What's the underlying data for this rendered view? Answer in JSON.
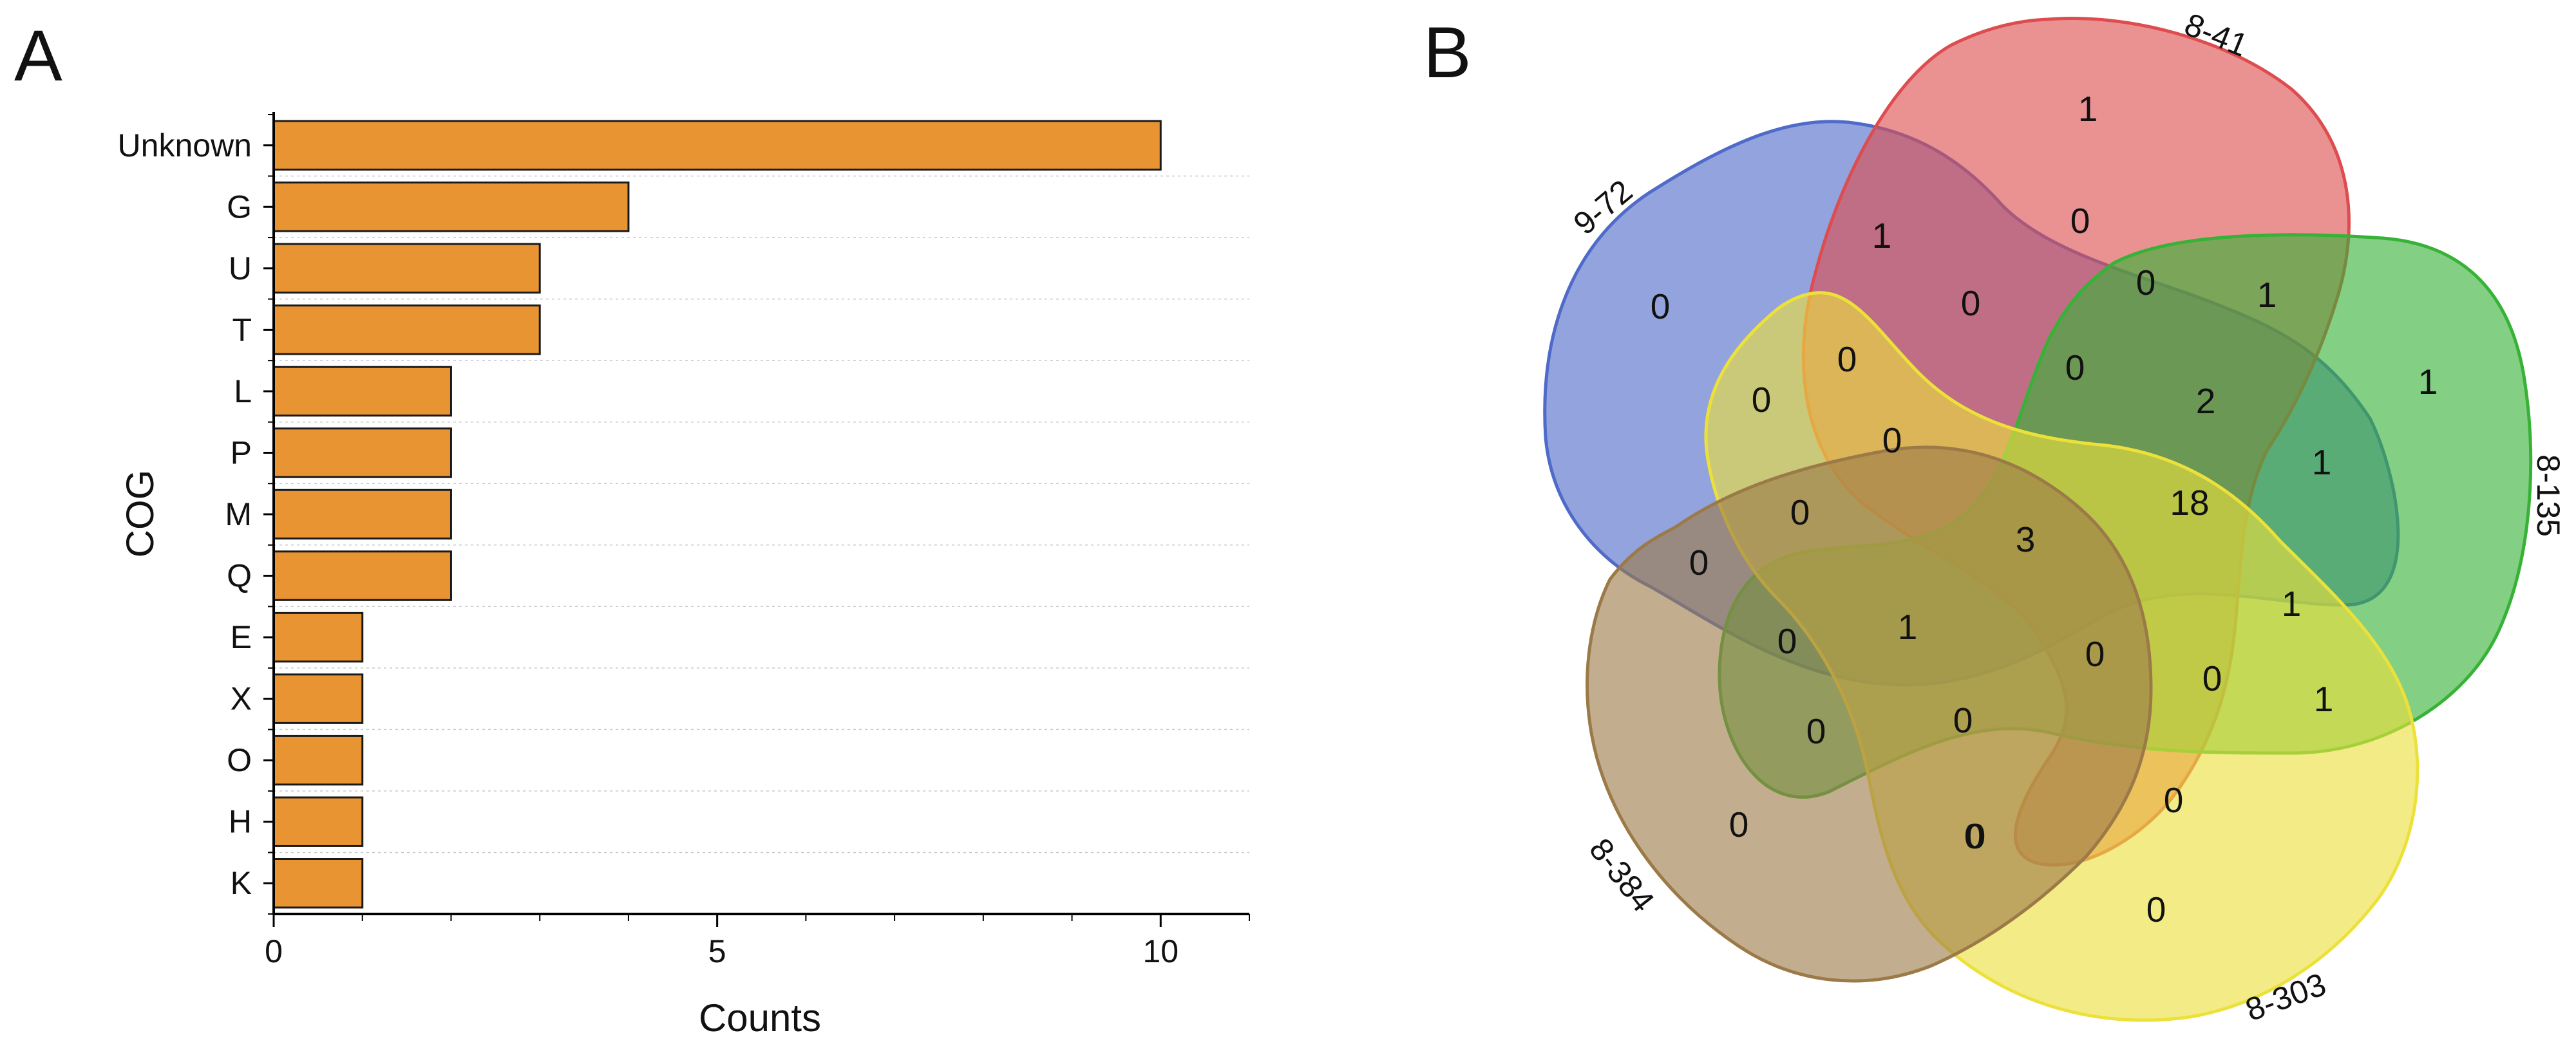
{
  "panels": {
    "a_label": "A",
    "b_label": "B"
  },
  "colors": {
    "bar_fill": "#e89433",
    "bar_stroke": "#1a1a1a",
    "set_9_72": "#4f6ac8",
    "set_8_41": "#dd4d4f",
    "set_8_135": "#37b237",
    "set_8_303": "#ece13b",
    "set_8_384": "#9c7a48"
  },
  "chart_data": [
    {
      "type": "bar",
      "orientation": "horizontal",
      "title": "",
      "xlabel": "Counts",
      "ylabel": "COG",
      "categories": [
        "Unknown",
        "G",
        "U",
        "T",
        "L",
        "P",
        "M",
        "Q",
        "E",
        "X",
        "O",
        "H",
        "K"
      ],
      "values": [
        10,
        4,
        3,
        3,
        2,
        2,
        2,
        2,
        1,
        1,
        1,
        1,
        1
      ],
      "xlim": [
        0,
        11
      ],
      "xticks": [
        0,
        5,
        10
      ],
      "grid": "horizontal dotted"
    },
    {
      "type": "venn",
      "title": "",
      "sets": [
        "9-72",
        "8-41",
        "8-135",
        "8-303",
        "8-384"
      ],
      "regions": [
        {
          "sets": [
            "9-72"
          ],
          "count": "0"
        },
        {
          "sets": [
            "8-41"
          ],
          "count": "1"
        },
        {
          "sets": [
            "8-135"
          ],
          "count": "1"
        },
        {
          "sets": [
            "8-303"
          ],
          "count": "0"
        },
        {
          "sets": [
            "8-384"
          ],
          "count": "0"
        },
        {
          "sets": [
            "9-72",
            "8-41"
          ],
          "count": "1"
        },
        {
          "sets": [
            "8-41",
            "8-135"
          ],
          "count": "1"
        },
        {
          "sets": [
            "8-135",
            "8-303"
          ],
          "count": "1"
        },
        {
          "sets": [
            "8-303",
            "8-384"
          ],
          "count": "0"
        },
        {
          "sets": [
            "9-72",
            "8-384"
          ],
          "count": "0"
        },
        {
          "sets": [
            "9-72",
            "8-303"
          ],
          "count": "0"
        },
        {
          "sets": [
            "8-41",
            "8-303"
          ],
          "count": "0"
        },
        {
          "sets": [
            "8-41",
            "8-384"
          ],
          "count": "0"
        },
        {
          "sets": [
            "9-72",
            "8-135"
          ],
          "count": "1"
        },
        {
          "sets": [
            "8-135",
            "8-384"
          ],
          "count": "0"
        },
        {
          "sets": [
            "9-72",
            "8-41",
            "8-303"
          ],
          "count": "0"
        },
        {
          "sets": [
            "9-72",
            "8-41",
            "8-135"
          ],
          "count": "2"
        },
        {
          "sets": [
            "8-41",
            "8-135",
            "8-303"
          ],
          "count": "0"
        },
        {
          "sets": [
            "8-135",
            "8-303",
            "8-384"
          ],
          "count": "0"
        },
        {
          "sets": [
            "9-72",
            "8-303",
            "8-384"
          ],
          "count": "0"
        },
        {
          "sets": [
            "9-72",
            "8-41",
            "8-384"
          ],
          "count": "0"
        },
        {
          "sets": [
            "8-41",
            "8-303",
            "8-384"
          ],
          "count": "0"
        },
        {
          "sets": [
            "9-72",
            "8-135",
            "8-384"
          ],
          "count": "0"
        },
        {
          "sets": [
            "9-72",
            "8-135",
            "8-303"
          ],
          "count": "1"
        },
        {
          "sets": [
            "8-41",
            "8-135",
            "8-384"
          ],
          "count": "0"
        },
        {
          "sets": [
            "9-72",
            "8-41",
            "8-135",
            "8-303"
          ],
          "count": "18"
        },
        {
          "sets": [
            "8-41",
            "8-135",
            "8-303",
            "8-384"
          ],
          "count": "0"
        },
        {
          "sets": [
            "9-72",
            "8-41",
            "8-303",
            "8-384"
          ],
          "count": "0"
        },
        {
          "sets": [
            "9-72",
            "8-41",
            "8-135",
            "8-384"
          ],
          "count": "0"
        },
        {
          "sets": [
            "9-72",
            "8-135",
            "8-303",
            "8-384"
          ],
          "count": "1"
        },
        {
          "sets": [
            "9-72",
            "8-41",
            "8-135",
            "8-303",
            "8-384"
          ],
          "count": "3"
        }
      ]
    }
  ]
}
